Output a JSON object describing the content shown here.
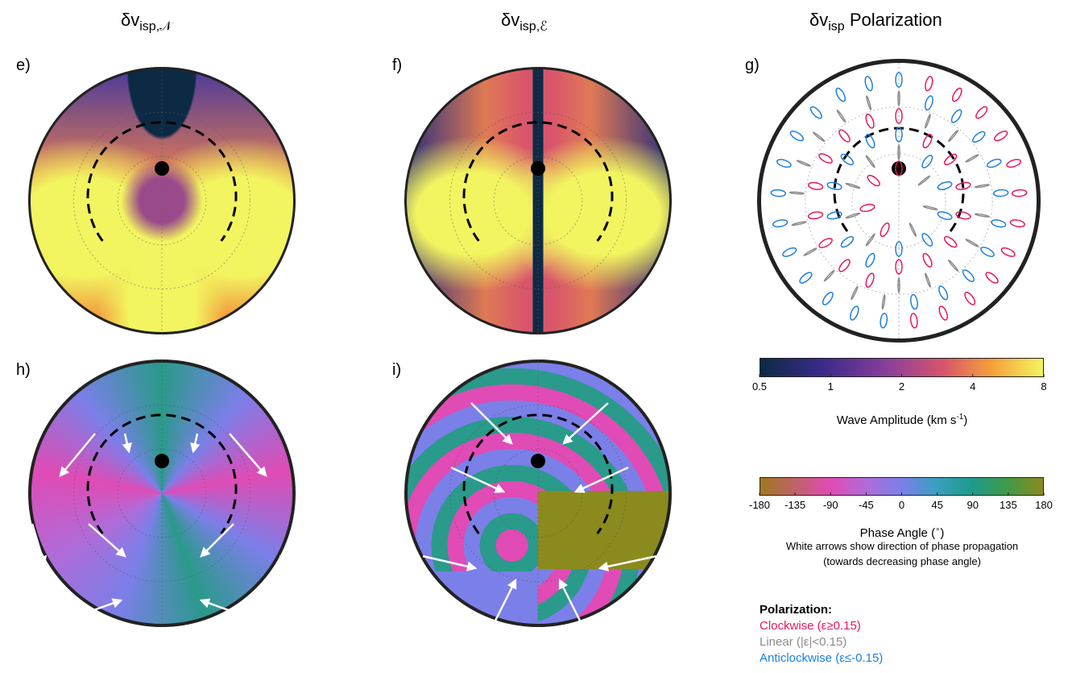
{
  "titles": [
    {
      "main": "δv",
      "sub": "isp,𝒩"
    },
    {
      "main": "δv",
      "sub": "isp,ℰ"
    },
    {
      "main": "δv",
      "sub": "isp",
      "rest": "Polarization"
    }
  ],
  "panel_labels": [
    "e)",
    "f)",
    "g)",
    "h)",
    "i)"
  ],
  "colorbars": [
    {
      "label": "Wave Amplitude (km s",
      "label_sup": "-1",
      "label_end": ")",
      "lim": [
        0.5,
        8
      ],
      "log": true,
      "ticks": [
        0.5,
        1,
        2,
        4,
        8
      ]
    },
    {
      "label": "Phase Angle (",
      "label_sup": "∘",
      "label_end": ")",
      "lim": [
        -180,
        180
      ],
      "log": false,
      "ticks": [
        -180,
        -135,
        -90,
        -45,
        0,
        45,
        90,
        135,
        180
      ]
    }
  ],
  "note": [
    "White arrows show direction of phase propagation",
    "(towards decreasing phase angle)"
  ],
  "legend": {
    "title": "Polarization:",
    "entries": [
      {
        "text": "Clockwise (ε≥0.15)",
        "color": "#e8175d"
      },
      {
        "text": "Linear (|ε|<0.15)",
        "color": "#8c8c8c"
      },
      {
        "text": "Anticlockwise (ε≤-0.15)",
        "color": "#1e7fe0"
      }
    ]
  }
}
